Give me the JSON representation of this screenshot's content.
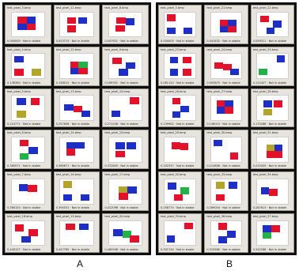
{
  "panels": [
    {
      "id": "a",
      "label": "A",
      "cells": [
        {
          "caption_top": "test_pixel_3.bmp",
          "caption_bottom": "0.000000 · Not in stable",
          "squares": [
            "red",
            "blue",
            "blue",
            "red"
          ]
        },
        {
          "caption_top": "test_pixel_11.bmp",
          "caption_bottom": "0.023715 · Not in stable",
          "squares": [
            "red",
            "blue",
            "red"
          ]
        },
        {
          "caption_top": "test_pixel_8.bmp",
          "caption_bottom": "0.047921 · Not in stable",
          "squares": [
            "red",
            "blue",
            "red"
          ]
        },
        {
          "caption_top": "test_pixel_4.bmp",
          "caption_bottom": "0.136360 · Not in stable",
          "squares": [
            "blue",
            "olive",
            "red",
            "blue"
          ]
        },
        {
          "caption_top": "test_pixel_12.bmp",
          "caption_bottom": "0.158012 · Not in stable",
          "squares": [
            "red",
            "green",
            "blue",
            "red"
          ]
        },
        {
          "caption_top": "test_pixel_9.bmp",
          "caption_bottom": "0.169301 · Not in stable",
          "squares": [
            "red",
            "blue",
            "blue",
            "red"
          ]
        },
        {
          "caption_top": "test_pixel_5.bmp",
          "caption_bottom": "0.224771 · Not in stable",
          "squares": [
            "blue",
            "red",
            "olive"
          ]
        },
        {
          "caption_top": "test_pixel_13.bmp",
          "caption_bottom": "0.257656 · Not in stable",
          "squares": [
            "blue",
            "red",
            "blue"
          ]
        },
        {
          "caption_top": "test_pixel_10.bmp",
          "caption_bottom": "0.271208 · Not in stable",
          "squares": [
            "blue",
            "red",
            "blue"
          ]
        },
        {
          "caption_top": "test_pixel_6.bmp",
          "caption_bottom": "0.365571 · Not in stable",
          "squares": [
            "red",
            "blue",
            "green"
          ]
        },
        {
          "caption_top": "test_pixel_14.bmp",
          "caption_bottom": "0.369671 · Not in stable",
          "squares": [
            "blue",
            "blue",
            "red"
          ]
        },
        {
          "caption_top": "test_pixel_15.bmp",
          "caption_bottom": "0.372805 · Not in stable",
          "squares": [
            "blue",
            "blue",
            "red"
          ]
        },
        {
          "caption_top": "test_pixel_7.bmp",
          "caption_bottom": "0.380150 · Not in stable",
          "squares": [
            "blue",
            "red"
          ]
        },
        {
          "caption_top": "test_pixel_16.bmp",
          "caption_bottom": "0.394531 · Not in stable",
          "squares": [
            "red",
            "blue",
            "blue",
            "olive"
          ]
        },
        {
          "caption_top": "test_pixel_17.bmp",
          "caption_bottom": "0.412096 · Not in stable",
          "squares": [
            "olive",
            "blue",
            "red"
          ]
        },
        {
          "caption_top": "test_pixel_18.bmp",
          "caption_bottom": "0.440127 · Not in stable",
          "squares": [
            "blue",
            "red",
            "blue",
            "red"
          ]
        },
        {
          "caption_top": "test_pixel_19.bmp",
          "caption_bottom": "0.447765 · Not in stable",
          "squares": [
            "red",
            "blue"
          ]
        },
        {
          "caption_top": "test_pixel_20.bmp",
          "caption_bottom": "0.465908 · Not in stable",
          "squares": [
            "blue",
            "green",
            "red"
          ]
        }
      ]
    },
    {
      "id": "b",
      "label": "B",
      "cells": [
        {
          "caption_top": "test_pixel_3.bmp",
          "caption_bottom": "0.000000 · Not in stable",
          "squares": [
            "red",
            "blue",
            "blue",
            "red"
          ]
        },
        {
          "caption_top": "test_pixel_21.bmp",
          "caption_bottom": "0.041632 · Not in stable",
          "squares": [
            "red",
            "blue",
            "blue",
            "red"
          ]
        },
        {
          "caption_top": "test_pixel_22.bmp",
          "caption_bottom": "0.059311 · Not in stable",
          "squares": [
            "red",
            "blue",
            "blue",
            "red"
          ]
        },
        {
          "caption_top": "test_pixel_23.bmp",
          "caption_bottom": "0.081120 · Not in stable",
          "squares": [
            "blue",
            "red",
            "blue",
            "red"
          ]
        },
        {
          "caption_top": "test_pixel_24.bmp",
          "caption_bottom": "0.093875 · Not in stable",
          "squares": [
            "blue",
            "red",
            "blue",
            "red"
          ]
        },
        {
          "caption_top": "test_pixel_25.bmp",
          "caption_bottom": "0.112407 · Not in stable",
          "squares": [
            "red",
            "blue",
            "green"
          ]
        },
        {
          "caption_top": "test_pixel_26.bmp",
          "caption_bottom": "0.139902 · Not in stable",
          "squares": [
            "red",
            "blue",
            "blue",
            "red"
          ]
        },
        {
          "caption_top": "test_pixel_27.bmp",
          "caption_bottom": "0.148015 · Not in stable",
          "squares": [
            "red",
            "blue",
            "blue",
            "red"
          ]
        },
        {
          "caption_top": "test_pixel_28.bmp",
          "caption_bottom": "0.170288 · Not in stable",
          "squares": [
            "blue",
            "red",
            "olive"
          ]
        },
        {
          "caption_top": "test_pixel_29.bmp",
          "caption_bottom": "0.202337 · Not in stable",
          "squares": [
            "red",
            "red"
          ]
        },
        {
          "caption_top": "test_pixel_30.bmp",
          "caption_bottom": "0.214896 · Not in stable",
          "squares": [
            "blue",
            "red"
          ]
        },
        {
          "caption_top": "test_pixel_31.bmp",
          "caption_bottom": "0.233459 · Not in stable",
          "squares": [
            "olive",
            "blue",
            "red",
            "red"
          ]
        },
        {
          "caption_top": "test_pixel_32.bmp",
          "caption_bottom": "0.258770 · Not in stable",
          "squares": [
            "blue",
            "green",
            "red"
          ]
        },
        {
          "caption_top": "test_pixel_33.bmp",
          "caption_bottom": "0.269004 · Not in stable",
          "squares": [
            "olive",
            "blue",
            "red"
          ]
        },
        {
          "caption_top": "test_pixel_34.bmp",
          "caption_bottom": "0.287613 · Not in stable",
          "squares": [
            "blue",
            "red"
          ]
        },
        {
          "caption_top": "test_pixel_35.bmp",
          "caption_bottom": "0.301744 · Not in stable",
          "squares": [
            "blue",
            "red"
          ]
        },
        {
          "caption_top": "test_pixel_36.bmp",
          "caption_bottom": "0.319560 · Not in stable",
          "squares": [
            "red",
            "blue",
            "blue"
          ]
        },
        {
          "caption_top": "test_pixel_37.bmp",
          "caption_bottom": "0.342288 · Not in stable",
          "squares": [
            "blue",
            "red",
            "green"
          ]
        }
      ]
    }
  ]
}
